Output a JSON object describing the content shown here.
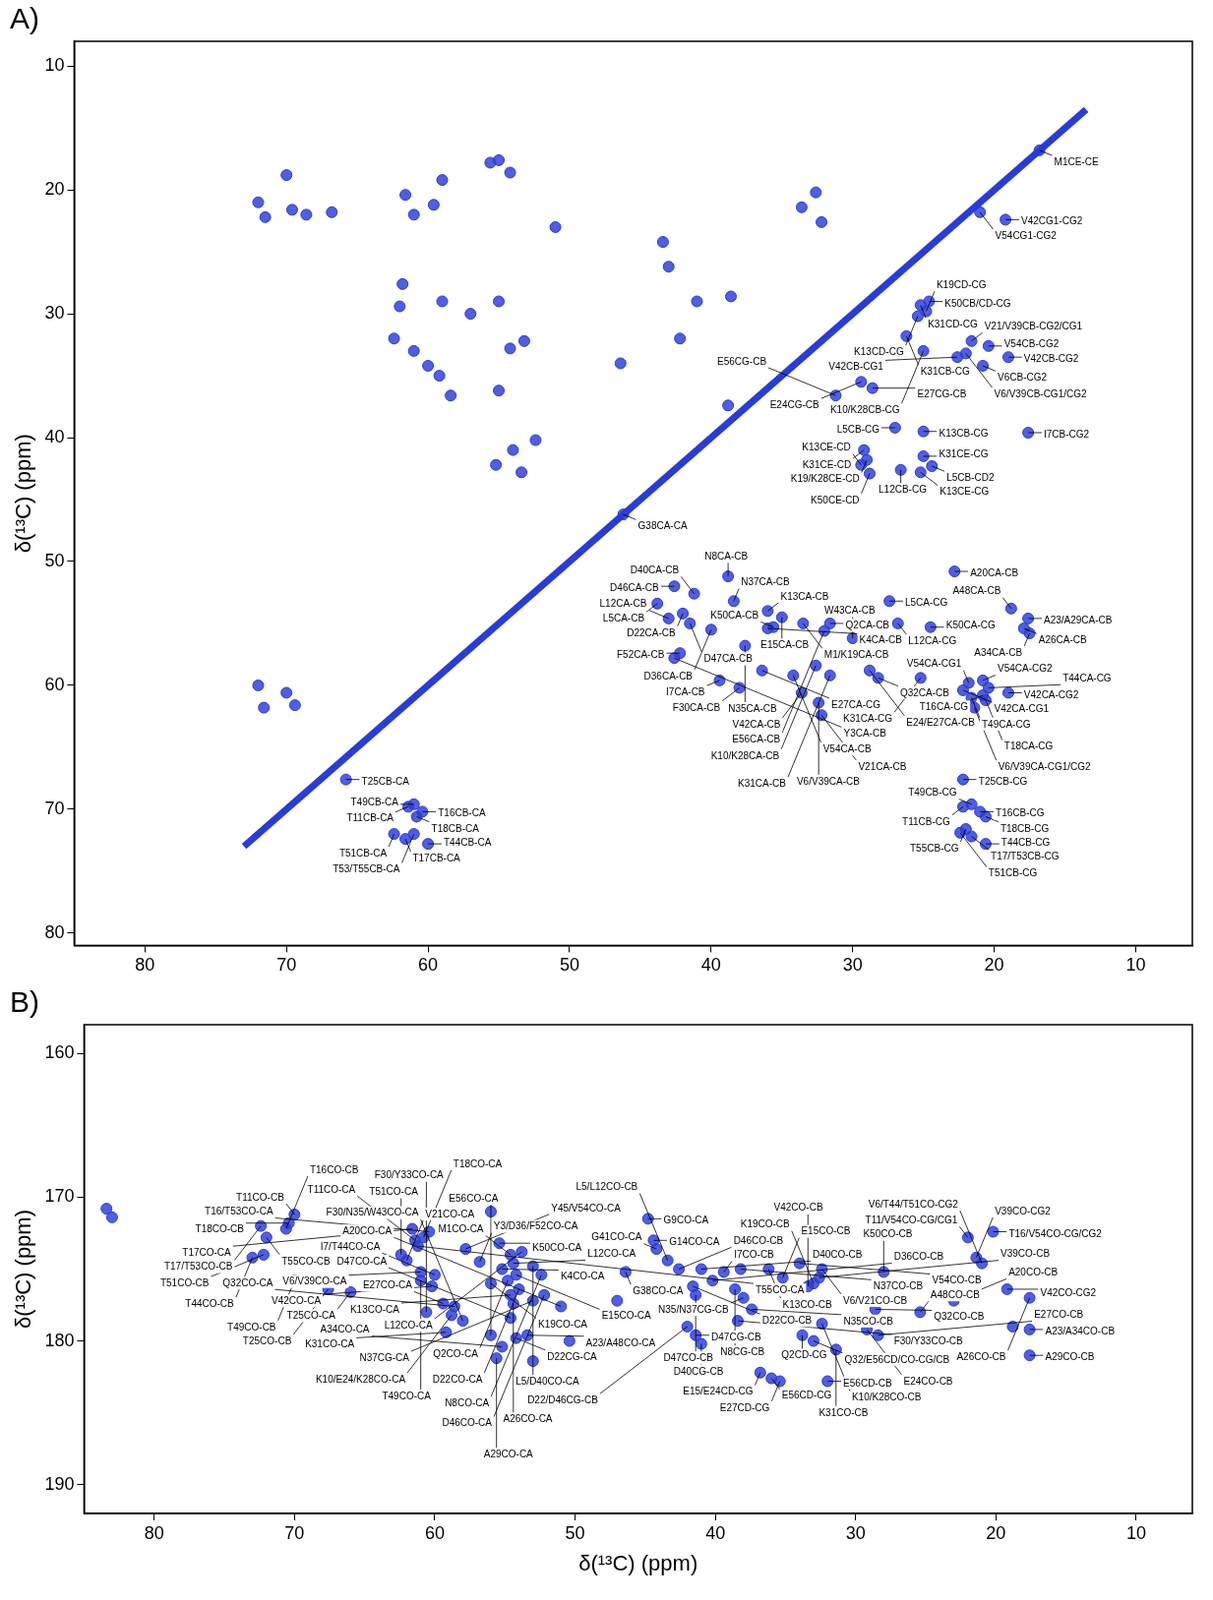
{
  "chart_data": [
    {
      "type": "scatter",
      "title": "A)",
      "y_label": "δ(¹³C) (ppm)",
      "xlim": [
        85,
        6
      ],
      "ylim": [
        81,
        8
      ],
      "xticks": [
        80,
        70,
        60,
        50,
        40,
        30,
        20,
        10
      ],
      "yticks": [
        10,
        20,
        30,
        40,
        50,
        60,
        70,
        80
      ],
      "grid": false,
      "series": [
        {
          "type": "line",
          "color": "#2b3bd6",
          "x": [
            13.5,
            73
          ],
          "values": [
            13.5,
            73
          ]
        },
        {
          "type": "scatter",
          "color": "#2b3bd6",
          "marker": "circle",
          "x": [
            72.0,
            71.5,
            70.0,
            69.6,
            68.6,
            66.8,
            61.6,
            61.0,
            59.6,
            59.0,
            55.0,
            54.2,
            55.6,
            51.0,
            61.8,
            62.0,
            59.0,
            62.4,
            61.0,
            60.0,
            55.0,
            57.0,
            54.2,
            53.2,
            55.0,
            59.2,
            58.4,
            55.2,
            54.0,
            52.4,
            53.4,
            43.4,
            43.0,
            41.0,
            38.6,
            32.6,
            32.2,
            33.6,
            72.0,
            71.6,
            70.0,
            69.4,
            42.2,
            38.8,
            46.4
          ],
          "values": [
            21.0,
            22.2,
            18.8,
            21.6,
            22.0,
            21.8,
            20.4,
            22.0,
            21.2,
            19.2,
            17.6,
            18.6,
            17.8,
            23.0,
            27.6,
            29.4,
            29.0,
            32.0,
            33.0,
            34.2,
            29.0,
            30.0,
            32.8,
            32.2,
            36.2,
            35.0,
            36.6,
            42.2,
            41.0,
            40.2,
            42.8,
            24.2,
            26.2,
            29.0,
            28.6,
            20.2,
            22.6,
            21.4,
            60.0,
            61.8,
            60.6,
            61.6,
            32.0,
            37.4,
            34.0
          ]
        },
        {
          "type": "scatter",
          "color": "#2b3bd6",
          "marker": "circle",
          "x": [
            16.8,
            21.0,
            19.2,
            24.6,
            25.2,
            24.8,
            25.4,
            26.2,
            21.6,
            20.4,
            19.0,
            20.8,
            22.6,
            22.0,
            25.0,
            28.6,
            29.4,
            31.2,
            27.0,
            25.0,
            17.6,
            25.0,
            29.2,
            29.0,
            24.4,
            29.4,
            26.6,
            28.8,
            25.2,
            46.2,
            42.6,
            41.2,
            38.4,
            38.8,
            36.0,
            35.0,
            33.5,
            26.8,
            27.4,
            22.8,
            31.6,
            35.6,
            24.5,
            18.8,
            17.6,
            17.9,
            17.5,
            42.0,
            43.8,
            43.0,
            41.5,
            40.0,
            42.2,
            42.6,
            37.6,
            38.0,
            39.4,
            36.0,
            36.4,
            30.0,
            32.0,
            34.2,
            28.8,
            33.6,
            28.2,
            32.6,
            31.6,
            32.4,
            32.2,
            20.8,
            21.8,
            22.2,
            21.6,
            19.0,
            20.8,
            25.2,
            20.6,
            20.4,
            21.4,
            22.2,
            21.6,
            22.2,
            21.0,
            20.6,
            22.0,
            21.6,
            22.4,
            20.6,
            65.8,
            60.4,
            61.4,
            61.0,
            60.8,
            61.6,
            62.4,
            61.0,
            60.0
          ],
          "values": [
            16.8,
            21.8,
            22.4,
            29.0,
            29.3,
            29.8,
            30.2,
            31.8,
            32.2,
            32.6,
            33.5,
            34.2,
            33.5,
            33.2,
            33.0,
            36.0,
            35.5,
            36.6,
            39.2,
            39.5,
            39.6,
            41.5,
            41.0,
            41.8,
            42.3,
            42.2,
            42.6,
            42.9,
            42.8,
            46.2,
            52.0,
            52.6,
            53.2,
            51.2,
            54.0,
            54.5,
            55.0,
            55.0,
            53.2,
            50.8,
            55.0,
            55.3,
            55.3,
            53.8,
            54.6,
            55.4,
            55.8,
            54.2,
            53.4,
            54.6,
            55.0,
            55.5,
            57.4,
            57.8,
            56.8,
            60.2,
            59.6,
            55.4,
            58.8,
            56.2,
            55.6,
            59.2,
            58.8,
            60.6,
            59.4,
            58.4,
            59.2,
            61.4,
            62.4,
            59.6,
            59.8,
            60.4,
            61.0,
            60.6,
            60.8,
            59.4,
            61.2,
            60.2,
            61.8,
            67.6,
            69.6,
            69.8,
            70.2,
            70.6,
            71.6,
            72.2,
            71.9,
            72.8,
            67.6,
            70.2,
            69.8,
            69.6,
            70.6,
            72.4,
            72.0,
            72.0,
            72.8
          ],
          "labels": [
            "M1CE-CE",
            "V54CG1-CG2",
            "V42CG1-CG2",
            "K50CB/CD-CG",
            "K31CD-CG",
            "K19CD-CG",
            "K13CD-CG",
            "K31CB-CG",
            "V21/V39CB-CG2/CG1",
            "V54CB-CG2",
            "V42CB-CG2",
            "V6CB-CG2",
            "V42CB-CG1",
            "V6/V39CB-CG1/CG2",
            "K10/K28CB-CG",
            "E27CG-CB",
            "E24CG-CB",
            "E56CG-CB",
            "L5CB-CG",
            "K13CB-CG",
            "I7CB-CG2",
            "K31CE-CG",
            "K31CE-CD",
            "K19/K28CE-CD",
            "L5CB-CD2",
            "K13CE-CD",
            "L12CB-CG",
            "K50CE-CD",
            "K13CE-CG",
            "G38CA-CA",
            "D46CA-CB",
            "D40CA-CB",
            "N37CA-CB",
            "N8CA-CB",
            "K13CA-CB",
            "E15CA-CB",
            "M1/K19CA-CB",
            "L12CA-CG",
            "L5CA-CG",
            "A20CA-CB",
            "Q2CA-CB",
            "K50CA-CB",
            "K50CA-CG",
            "A48CA-CB",
            "A23/A29CA-CB",
            "A26CA-CB",
            "A34CA-CB",
            "D22CA-CB",
            "L5CA-CB",
            "L12CA-CB",
            "D47CA-CB",
            "D36CA-CB",
            "F52CA-CB",
            "Y3CA-CB",
            "N35CA-CB",
            "F30CA-CB",
            "I7CA-CB",
            "K4CA-CB",
            "E27CA-CG",
            "W43CA-CB",
            "E56CA-CB",
            "V54CA-CB",
            "E24/E27CA-CB",
            "V42CA-CB",
            "Q32CA-CB",
            "K10/K28CA-CB",
            "K31CA-CB",
            "V6/V39CA-CB",
            "V21CA-CB",
            "V54CA-CG2",
            "V54CA-CG1",
            "V42CA-CG1",
            "T49CA-CG",
            "V42CA-CG2",
            "T16CA-CG",
            "K31CA-CG",
            "T18CA-CG",
            "T44CA-CG",
            "V6/V39CA-CG1/CG2",
            "T25CB-CG",
            "T49CB-CG",
            "T11CB-CG",
            "T16CB-CG",
            "T18CB-CG",
            "T55CB-CG",
            "T17/T53CB-CG",
            "T51CB-CG",
            "T44CB-CG",
            "T25CB-CA",
            "T16CB-CA",
            "T11CB-CA",
            "T49CB-CA",
            "T18CB-CA",
            "T17CB-CA",
            "T51CB-CA",
            "T53/T55CB-CA",
            "T44CB-CA"
          ]
        }
      ]
    },
    {
      "type": "scatter",
      "title": "B)",
      "x_label": "δ(¹³C) (ppm)",
      "y_label": "δ(¹³C) (ppm)",
      "xlim": [
        85,
        6
      ],
      "ylim": [
        192,
        158
      ],
      "xticks": [
        80,
        70,
        60,
        50,
        40,
        30,
        20,
        10
      ],
      "yticks": [
        160,
        170,
        180,
        190
      ],
      "grid": false,
      "series": [
        {
          "type": "scatter",
          "color": "#2b3bd6",
          "marker": "circle",
          "x": [
            83.0,
            83.4,
            18.8,
            56.0,
            47.0,
            50.4,
            53.0
          ],
          "values": [
            171.4,
            170.8,
            179.0,
            171.0,
            177.2,
            180.0,
            181.4
          ]
        },
        {
          "type": "scatter",
          "color": "#2b3bd6",
          "marker": "circle",
          "x": [
            56.8,
            56.0,
            55.4,
            54.6,
            55.2,
            54.8,
            44.8,
            54.4,
            54.2,
            44.4,
            53.8,
            44.2,
            53.0,
            54.0,
            52.4,
            46.4,
            42.6,
            38.0,
            52.2,
            51.0,
            53.0,
            54.6,
            54.2,
            41.4,
            54.4,
            54.6,
            53.4,
            55.6,
            55.2,
            56.0,
            59.2,
            58.0,
            58.8,
            60.6,
            59.4,
            58.6,
            60.0,
            61.0,
            62.0,
            62.4,
            61.2,
            61.4,
            60.8,
            60.4,
            61.6,
            57.8,
            60.2,
            66.0,
            61.0,
            70.0,
            70.4,
            70.6,
            72.4,
            72.0,
            73.0,
            72.2,
            70.0,
            67.6,
            43.4,
            41.6,
            41.0,
            39.4,
            38.2,
            35.2,
            40.2,
            36.2,
            38.6,
            33.0,
            37.4,
            41.4,
            33.8,
            38.4,
            41.0,
            42.0,
            36.0,
            36.8,
            35.4,
            32.0,
            33.0,
            34.0,
            32.4,
            32.6,
            33.4,
            28.0,
            28.6,
            32.4,
            25.4,
            28.4,
            29.2,
            31.4,
            23.0,
            22.0,
            20.2,
            21.4,
            21.0,
            19.2,
            17.6,
            17.6,
            17.6
          ],
          "values": [
            174.5,
            176.0,
            173.2,
            174.0,
            175.0,
            175.8,
            171.5,
            174.6,
            175.4,
            173.0,
            173.8,
            173.6,
            174.8,
            176.4,
            175.4,
            175.2,
            175.0,
            177.0,
            176.8,
            177.6,
            177.2,
            176.8,
            179.8,
            179.6,
            177.4,
            178.4,
            179.6,
            181.2,
            180.4,
            179.6,
            179.4,
            178.6,
            178.2,
            178.0,
            177.4,
            177.6,
            175.4,
            175.2,
            174.4,
            174.0,
            173.4,
            173.0,
            172.8,
            172.4,
            172.2,
            173.6,
            176.2,
            176.6,
            175.8,
            171.2,
            171.8,
            172.2,
            172.0,
            172.8,
            174.2,
            174.0,
            175.8,
            176.4,
            174.4,
            176.2,
            175.0,
            175.2,
            175.0,
            175.6,
            175.8,
            175.0,
            176.4,
            176.0,
            177.8,
            176.8,
            179.6,
            178.6,
            180.2,
            179.0,
            182.6,
            182.2,
            182.8,
            182.8,
            180.0,
            174.6,
            175.0,
            175.6,
            176.2,
            175.2,
            177.8,
            178.8,
            178.0,
            179.6,
            179.2,
            180.6,
            177.2,
            172.8,
            172.4,
            174.2,
            174.6,
            176.4,
            177.0,
            179.2,
            181.0
          ],
          "labels": [
            "Y3/D36/F52CO-CA",
            "K19CO-CA",
            "K50CO-CA",
            "M1CO-CA",
            "K4CO-CA",
            "Q2CO-CA",
            "G9CO-CA",
            "L12CO-CA",
            "E15CO-CA",
            "G14CO-CA",
            "L12CO-CA",
            "G41CO-CA",
            "L5/D40CO-CA",
            "D22CO-CA",
            "N8CO-CA",
            "G38CO-CA",
            "D46CO-CB",
            "N35/N37CG-CB",
            "D46CO-CA",
            "A20CO-CA",
            "N37CG-CA",
            "K13CO-CA",
            "D22CG-CA",
            "D47CG-CB",
            "A26CO-CA",
            "D47CO-CA",
            "A23/A48CO-CA",
            "A29CO-CA",
            "A34CO-CA",
            "E56CO-CA",
            "K31CO-CA",
            "F30/N35/W43CO-CA",
            "K10/E24/K28CO-CA",
            "F30/Y33CO-CA",
            "E27CO-CA",
            "Q32CO-CA",
            "I7/T44CO-CA",
            "V6/V39CO-CA",
            "V21CO-CA",
            "T51CO-CA",
            "T55CO-CA",
            "T11CO-CA",
            "T18CO-CA",
            "T16/T53CO-CA",
            "T17CO-CA",
            "Y45/V54CO-CA",
            "V42CO-CA",
            "T25CO-CA",
            "T49CO-CA",
            "T11CO-CB",
            "T18CO-CB",
            "T16CO-CB",
            "T17/T53CO-CB",
            "T55CO-CB",
            "T44CO-CB",
            "T51CO-CB",
            "T49CO-CB",
            "T25CO-CB",
            "L5/L12CO-CB",
            "D22CO-CB",
            "D40CO-CB",
            "I7CO-CB",
            "N37CO-CB",
            "E15CO-CB",
            "D36CO-CB",
            "K13CO-CB",
            "N8CG-CB",
            "K19CO-CB",
            "N35CO-CB",
            "D47CO-CB",
            "Q2CD-CG",
            "F30/Y33CO-CB",
            "D40CG-CB",
            "D22/D46CG-CB",
            "E56CD-CG",
            "E15/E24CD-CG",
            "E27CD-CG",
            "E56CD-CB",
            "Q32/E56CD/CO-CG/CB",
            "V54CO-CB",
            "V6/V21CO-CB",
            "V39CO-CB",
            "V42CO-CB",
            "K50CO-CB",
            "Q32CO-CB",
            "K10/K28CO-CB",
            "A48CO-CB",
            "E27CO-CB",
            "E24CO-CB",
            "K31CO-CB",
            "A20CO-CB",
            "T11/V54CO-CG/CG1",
            "T16/V54CO-CG/CG2",
            "V39CO-CG2",
            "V6/T44/T51CO-CG2",
            "V42CO-CG2",
            "A26CO-CB",
            "A23/A34CO-CB",
            "A29CO-CB"
          ]
        }
      ]
    }
  ]
}
